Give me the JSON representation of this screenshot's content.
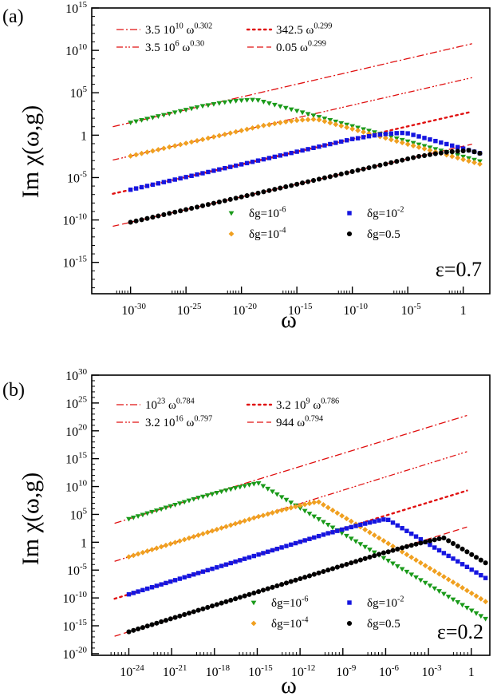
{
  "chart_data": [
    {
      "type": "scatter",
      "panel_label": "(a)",
      "annotation": "ε=0.7",
      "xlabel": "ω",
      "ylabel": "Im χ(ω,g)",
      "xscale": "log",
      "yscale": "log",
      "xlim_exp": [
        -33.5,
        2.4
      ],
      "ylim_exp": [
        -18.7,
        15
      ],
      "xticks": [
        {
          "exp": -30,
          "label": "10",
          "sup": "-30"
        },
        {
          "exp": -25,
          "label": "10",
          "sup": "-25"
        },
        {
          "exp": -20,
          "label": "10",
          "sup": "-20"
        },
        {
          "exp": -15,
          "label": "10",
          "sup": "-15"
        },
        {
          "exp": -10,
          "label": "10",
          "sup": "-10"
        },
        {
          "exp": -5,
          "label": "10",
          "sup": "-5"
        },
        {
          "exp": 0,
          "label": "1",
          "sup": ""
        }
      ],
      "yticks": [
        {
          "exp": 15,
          "label": "10",
          "sup": "15"
        },
        {
          "exp": 10,
          "label": "10",
          "sup": "10"
        },
        {
          "exp": 5,
          "label": "10",
          "sup": "5"
        },
        {
          "exp": 0,
          "label": "1",
          "sup": ""
        },
        {
          "exp": -5,
          "label": "10",
          "sup": "-5"
        },
        {
          "exp": -10,
          "label": "10",
          "sup": "-10"
        },
        {
          "exp": -15,
          "label": "10",
          "sup": "-15"
        }
      ],
      "fits": [
        {
          "label": "3.5 10",
          "sup1": "10",
          "mid": " ω",
          "sup2": "0.302",
          "style": "dash-dot",
          "log10_prefactor": 10.544,
          "exponent": 0.302,
          "x_exp_range": [
            -31.6,
            0.8
          ]
        },
        {
          "label": "3.5 10",
          "sup1": "6",
          "mid": " ω",
          "sup2": "0.30",
          "style": "dash-dot-dot",
          "log10_prefactor": 6.544,
          "exponent": 0.3,
          "x_exp_range": [
            -31.6,
            0.8
          ]
        },
        {
          "label": "342.5 ",
          "sup1": "",
          "mid": "ω",
          "sup2": "0.299",
          "style": "dotted",
          "log10_prefactor": 2.535,
          "exponent": 0.299,
          "x_exp_range": [
            -31.6,
            0.8
          ]
        },
        {
          "label": "0.05 ",
          "sup1": "",
          "mid": "ω",
          "sup2": "0.299",
          "style": "dashed",
          "log10_prefactor": -1.301,
          "exponent": 0.299,
          "x_exp_range": [
            -31.6,
            0.8
          ]
        }
      ],
      "series": [
        {
          "name": "δg=10",
          "sup": "-6",
          "marker": "triangle-down",
          "color": "#1a9a1a",
          "peak_x_exp": -19,
          "peak_y_exp": 4.8,
          "slope": 0.302,
          "prefactor_exp": 10.544,
          "right_slope": 0.4,
          "x_exp_range": [
            -30,
            1.5
          ],
          "n_points": 64
        },
        {
          "name": "δg=10",
          "sup": "-4",
          "marker": "diamond",
          "color": "#f0a020",
          "peak_x_exp": -13.5,
          "peak_y_exp": 2.5,
          "slope": 0.3,
          "prefactor_exp": 6.544,
          "right_slope": 0.4,
          "x_exp_range": [
            -30,
            1.5
          ],
          "n_points": 64
        },
        {
          "name": "δg=10",
          "sup": "-2",
          "marker": "square",
          "color": "#1515e0",
          "peak_x_exp": -5.5,
          "peak_y_exp": 0.9,
          "slope": 0.299,
          "prefactor_exp": 2.535,
          "right_slope": 0.4,
          "x_exp_range": [
            -30,
            1.5
          ],
          "n_points": 64
        },
        {
          "name": "δg=0.5",
          "sup": "",
          "marker": "circle",
          "color": "#000000",
          "peak_x_exp": 0.3,
          "peak_y_exp": -1.2,
          "slope": 0.299,
          "prefactor_exp": -1.301,
          "right_slope": 0.4,
          "x_exp_range": [
            -30,
            1.5
          ],
          "n_points": 64
        }
      ]
    },
    {
      "type": "scatter",
      "panel_label": "(b)",
      "annotation": "ε=0.2",
      "xlabel": "ω",
      "ylabel": "Im χ(ω,g)",
      "xscale": "log",
      "yscale": "log",
      "xlim_exp": [
        -26.6,
        1.3
      ],
      "ylim_exp": [
        -20.3,
        30
      ],
      "xticks": [
        {
          "exp": -24,
          "label": "10",
          "sup": "-24"
        },
        {
          "exp": -21,
          "label": "10",
          "sup": "-21"
        },
        {
          "exp": -18,
          "label": "10",
          "sup": "-18"
        },
        {
          "exp": -15,
          "label": "10",
          "sup": "-15"
        },
        {
          "exp": -12,
          "label": "10",
          "sup": "-12"
        },
        {
          "exp": -9,
          "label": "10",
          "sup": "-9"
        },
        {
          "exp": -6,
          "label": "10",
          "sup": "-6"
        },
        {
          "exp": -3,
          "label": "10",
          "sup": "-3"
        },
        {
          "exp": 0,
          "label": "1",
          "sup": ""
        }
      ],
      "yticks": [
        {
          "exp": 30,
          "label": "10",
          "sup": "30"
        },
        {
          "exp": 25,
          "label": "10",
          "sup": "25"
        },
        {
          "exp": 20,
          "label": "10",
          "sup": "20"
        },
        {
          "exp": 15,
          "label": "10",
          "sup": "15"
        },
        {
          "exp": 10,
          "label": "10",
          "sup": "10"
        },
        {
          "exp": 5,
          "label": "10",
          "sup": "5"
        },
        {
          "exp": 0,
          "label": "1",
          "sup": ""
        },
        {
          "exp": -5,
          "label": "10",
          "sup": "-5"
        },
        {
          "exp": -10,
          "label": "10",
          "sup": "-10"
        },
        {
          "exp": -15,
          "label": "10",
          "sup": "-15"
        },
        {
          "exp": -20,
          "label": "10",
          "sup": "-20"
        }
      ],
      "fits": [
        {
          "label": "10",
          "sup1": "23",
          "mid": " ω",
          "sup2": "0.784",
          "style": "dash-dot",
          "log10_prefactor": 23.0,
          "exponent": 0.784,
          "x_exp_range": [
            -25,
            -0.3
          ]
        },
        {
          "label": "3.2 10",
          "sup1": "16",
          "mid": " ω",
          "sup2": "0.797",
          "style": "dash-dot-dot",
          "log10_prefactor": 16.505,
          "exponent": 0.797,
          "x_exp_range": [
            -25,
            -0.3
          ]
        },
        {
          "label": "3.2 10",
          "sup1": "9",
          "mid": " ω",
          "sup2": "0.786",
          "style": "dotted",
          "log10_prefactor": 9.505,
          "exponent": 0.786,
          "x_exp_range": [
            -25,
            -0.3
          ]
        },
        {
          "label": "944 ",
          "sup1": "",
          "mid": "ω",
          "sup2": "0.794",
          "style": "dashed",
          "log10_prefactor": 2.975,
          "exponent": 0.794,
          "x_exp_range": [
            -25,
            -0.3
          ]
        }
      ],
      "series": [
        {
          "name": "δg=10",
          "sup": "-6",
          "marker": "triangle-down",
          "color": "#1a9a1a",
          "peak_x_exp": -15,
          "peak_y_exp": 11.3,
          "slope": 0.784,
          "prefactor_exp": 23.0,
          "right_slope": 1.7,
          "x_exp_range": [
            -24,
            1.0
          ],
          "n_points": 78
        },
        {
          "name": "δg=10",
          "sup": "-4",
          "marker": "diamond",
          "color": "#f0a020",
          "peak_x_exp": -10.8,
          "peak_y_exp": 7.0,
          "slope": 0.797,
          "prefactor_exp": 16.505,
          "right_slope": 1.7,
          "x_exp_range": [
            -24,
            1.0
          ],
          "n_points": 78
        },
        {
          "name": "δg=10",
          "sup": "-2",
          "marker": "square",
          "color": "#1515e0",
          "peak_x_exp": -6.0,
          "peak_y_exp": 4.5,
          "slope": 0.786,
          "prefactor_exp": 9.505,
          "right_slope": 1.7,
          "x_exp_range": [
            -24,
            1.0
          ],
          "n_points": 78
        },
        {
          "name": "δg=0.5",
          "sup": "",
          "marker": "circle",
          "color": "#000000",
          "peak_x_exp": -2.0,
          "peak_y_exp": 1.3,
          "slope": 0.794,
          "prefactor_exp": 2.975,
          "right_slope": 1.7,
          "x_exp_range": [
            -24,
            1.0
          ],
          "n_points": 78
        }
      ]
    }
  ]
}
